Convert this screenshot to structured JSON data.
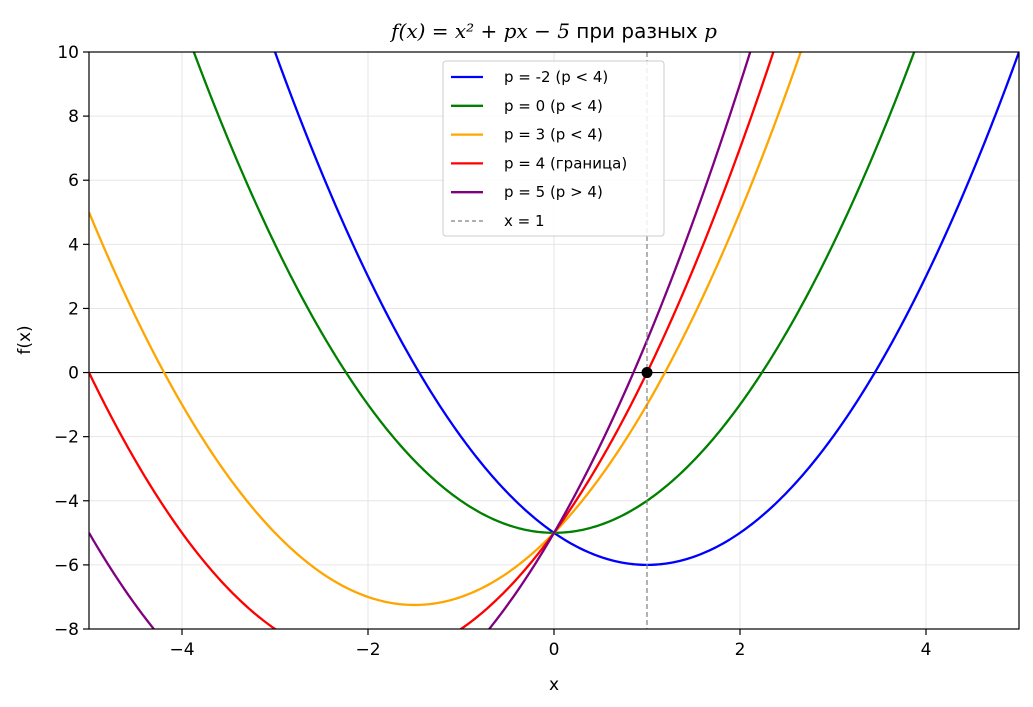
{
  "chart_data": {
    "type": "line",
    "title": {
      "prefix": "f(x) = x² + px − 5",
      "suffix": " при разных ",
      "param": "p"
    },
    "xlabel": "x",
    "ylabel": "f(x)",
    "xlim": [
      -5,
      5
    ],
    "ylim": [
      -8,
      10
    ],
    "xticks": [
      -4,
      -2,
      0,
      2,
      4
    ],
    "yticks": [
      -8,
      -6,
      -4,
      -2,
      0,
      2,
      4,
      6,
      8,
      10
    ],
    "xtick_labels": [
      "−4",
      "−2",
      "0",
      "2",
      "4"
    ],
    "ytick_labels": [
      "−8",
      "−6",
      "−4",
      "−2",
      "0",
      "2",
      "4",
      "6",
      "8",
      "10"
    ],
    "grid": true,
    "legend_position": "top-center",
    "function": "x^2 + p*x - 5",
    "series": [
      {
        "name": "p = -2 (p < 4)",
        "p": -2,
        "color": "#0000ff"
      },
      {
        "name": "p = 0 (p < 4)",
        "p": 0,
        "color": "#008000"
      },
      {
        "name": "p = 3 (p < 4)",
        "p": 3,
        "color": "#ffa500"
      },
      {
        "name": "p = 4 (граница)",
        "p": 4,
        "color": "#ff0000"
      },
      {
        "name": "p = 5 (p > 4)",
        "p": 5,
        "color": "#800080"
      }
    ],
    "vline": {
      "name": "x = 1",
      "x": 1,
      "color": "#808080",
      "style": "dashed"
    },
    "hline": {
      "y": 0,
      "color": "#000000"
    },
    "marker": {
      "x": 1,
      "y": 0,
      "color": "#000000"
    }
  }
}
